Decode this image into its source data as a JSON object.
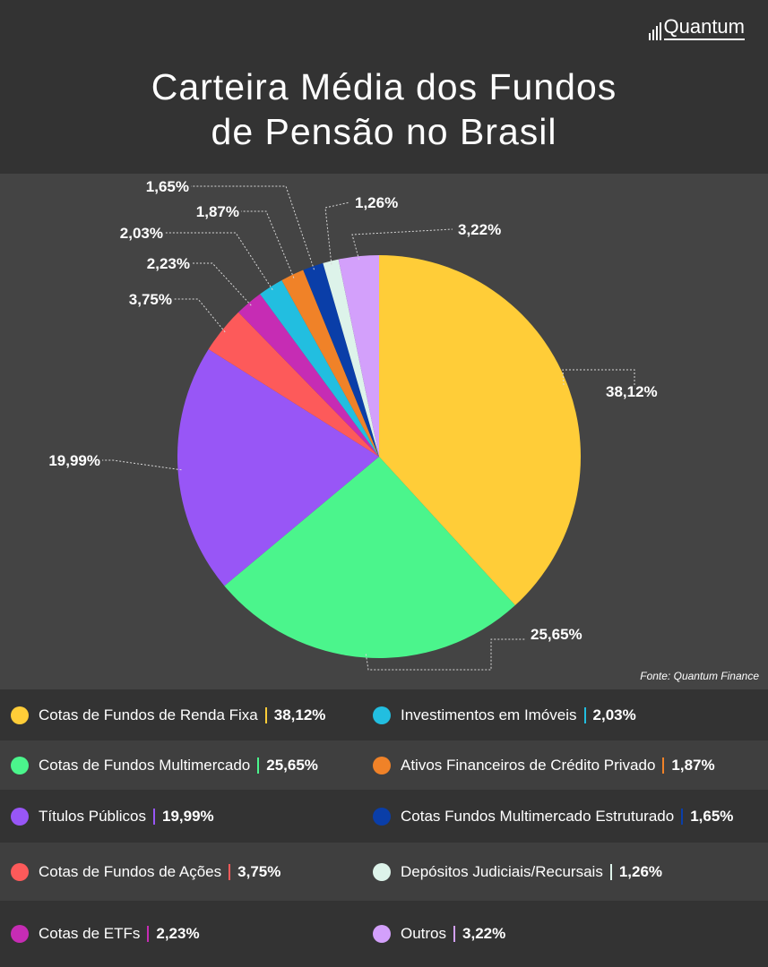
{
  "brand": {
    "name": "Quantum"
  },
  "header": {
    "title_line1": "Carteira Média dos Fundos",
    "title_line2": "de Pensão no Brasil"
  },
  "source": "Fonte: Quantum Finance",
  "chart_data": {
    "type": "pie",
    "title": "Carteira Média dos Fundos de Pensão no Brasil",
    "slices": [
      {
        "name": "Cotas de Fundos de Renda Fixa",
        "value": 38.12,
        "label": "38,12%",
        "color": "#FFCD38"
      },
      {
        "name": "Cotas de Fundos Multimercado",
        "value": 25.65,
        "label": "25,65%",
        "color": "#4BF58C"
      },
      {
        "name": "Títulos Públicos",
        "value": 19.99,
        "label": "19,99%",
        "color": "#9856F6"
      },
      {
        "name": "Cotas de Fundos de Ações",
        "value": 3.75,
        "label": "3,75%",
        "color": "#FD5A5A"
      },
      {
        "name": "Cotas de ETFs",
        "value": 2.23,
        "label": "2,23%",
        "color": "#C62CB4"
      },
      {
        "name": "Investimentos em Imóveis",
        "value": 2.03,
        "label": "2,03%",
        "color": "#22BEE0"
      },
      {
        "name": "Ativos Financeiros de Crédito Privado",
        "value": 1.87,
        "label": "1,87%",
        "color": "#F08228"
      },
      {
        "name": "Cotas Fundos Multimercado Estruturado",
        "value": 1.65,
        "label": "1,65%",
        "color": "#0A3EA8"
      },
      {
        "name": "Depósitos Judiciais/Recursais",
        "value": 1.26,
        "label": "1,26%",
        "color": "#DDF3EA"
      },
      {
        "name": "Outros",
        "value": 3.22,
        "label": "3,22%",
        "color": "#D3A0FB"
      }
    ]
  },
  "legend": {
    "left": [
      {
        "name": "Cotas de Fundos de Renda Fixa",
        "value": "38,12%",
        "color": "#FFCD38"
      },
      {
        "name": "Cotas de Fundos Multimercado",
        "value": "25,65%",
        "color": "#4BF58C"
      },
      {
        "name": "Títulos Públicos",
        "value": "19,99%",
        "color": "#9856F6"
      },
      {
        "name": "Cotas de Fundos de Ações",
        "value": "3,75%",
        "color": "#FD5A5A"
      },
      {
        "name": "Cotas de ETFs",
        "value": "2,23%",
        "color": "#C62CB4"
      }
    ],
    "right": [
      {
        "name": "Investimentos em Imóveis",
        "value": "2,03%",
        "color": "#22BEE0"
      },
      {
        "name": "Ativos Financeiros de Crédito Privado",
        "value": "1,87%",
        "color": "#F08228"
      },
      {
        "name": "Cotas Fundos Multimercado Estruturado",
        "value": "1,65%",
        "color": "#0A3EA8"
      },
      {
        "name": "Depósitos Judiciais/Recursais",
        "value": "1,26%",
        "color": "#DDF3EA"
      },
      {
        "name": "Outros",
        "value": "3,22%",
        "color": "#D3A0FB"
      }
    ],
    "row_colors": [
      "#333333",
      "#3f3f3f",
      "#333333",
      "#3f3f3f",
      "#333333"
    ]
  }
}
